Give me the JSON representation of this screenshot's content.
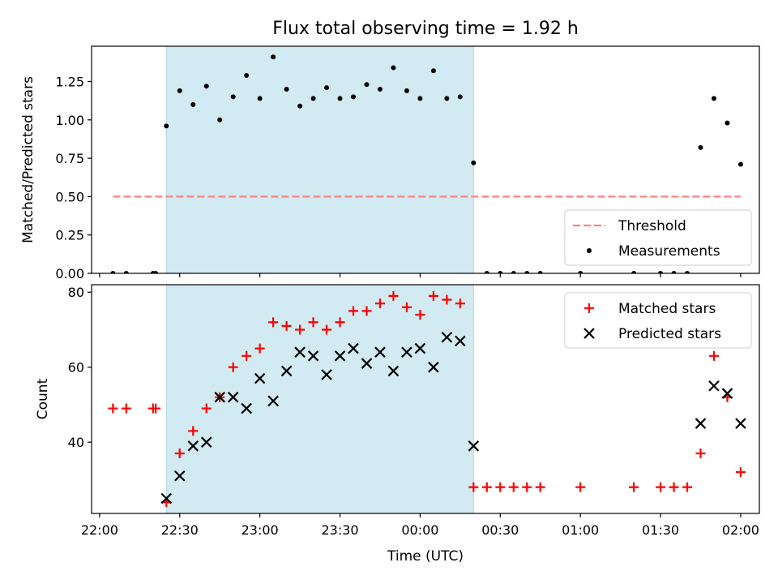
{
  "figure": {
    "title": "Flux total observing time = 1.92 h"
  },
  "chart_data": [
    {
      "type": "scatter",
      "panel": "top",
      "ylabel": "Matched/Predicted stars",
      "xlabel": "",
      "xlim": [
        "21:57",
        "02:07"
      ],
      "ylim": [
        0,
        1.48
      ],
      "yticks": [
        0.0,
        0.25,
        0.5,
        0.75,
        1.0,
        1.25
      ],
      "ytick_labels": [
        "0.00",
        "0.25",
        "0.50",
        "0.75",
        "1.00",
        "1.25"
      ],
      "shaded_span": {
        "start": "22:25",
        "end": "00:20",
        "color": "#add8e6"
      },
      "legend": {
        "placement": "bottom-right",
        "entries": [
          {
            "label": "Threshold",
            "marker": "dashed-line",
            "color": "#ff8080"
          },
          {
            "label": "Measurements",
            "marker": "dot",
            "color": "#000000"
          }
        ]
      },
      "threshold": {
        "name": "Threshold",
        "value": 0.5,
        "x_start": "22:05",
        "x_end": "02:00",
        "color": "#ff8080"
      },
      "series": [
        {
          "name": "Measurements",
          "color": "#000000",
          "points": [
            [
              "22:05",
              0
            ],
            [
              "22:10",
              0
            ],
            [
              "22:20",
              0
            ],
            [
              "22:21",
              0
            ],
            [
              "22:25",
              0.96
            ],
            [
              "22:30",
              1.19
            ],
            [
              "22:35",
              1.1
            ],
            [
              "22:40",
              1.22
            ],
            [
              "22:45",
              1.0
            ],
            [
              "22:50",
              1.15
            ],
            [
              "22:55",
              1.29
            ],
            [
              "23:00",
              1.14
            ],
            [
              "23:05",
              1.41
            ],
            [
              "23:10",
              1.2
            ],
            [
              "23:15",
              1.09
            ],
            [
              "23:20",
              1.14
            ],
            [
              "23:25",
              1.21
            ],
            [
              "23:30",
              1.14
            ],
            [
              "23:35",
              1.15
            ],
            [
              "23:40",
              1.23
            ],
            [
              "23:45",
              1.2
            ],
            [
              "23:50",
              1.34
            ],
            [
              "23:55",
              1.19
            ],
            [
              "00:00",
              1.14
            ],
            [
              "00:05",
              1.32
            ],
            [
              "00:10",
              1.14
            ],
            [
              "00:15",
              1.15
            ],
            [
              "00:20",
              0.72
            ],
            [
              "00:25",
              0
            ],
            [
              "00:30",
              0
            ],
            [
              "00:35",
              0
            ],
            [
              "00:40",
              0
            ],
            [
              "00:45",
              0
            ],
            [
              "01:00",
              0
            ],
            [
              "01:20",
              0
            ],
            [
              "01:30",
              0
            ],
            [
              "01:35",
              0
            ],
            [
              "01:40",
              0
            ],
            [
              "01:45",
              0.82
            ],
            [
              "01:50",
              1.14
            ],
            [
              "01:55",
              0.98
            ],
            [
              "02:00",
              0.71
            ]
          ]
        }
      ]
    },
    {
      "type": "scatter",
      "panel": "bottom",
      "ylabel": "Count",
      "xlabel": "Time (UTC)",
      "xlim": [
        "21:57",
        "02:07"
      ],
      "ylim": [
        21,
        82
      ],
      "yticks": [
        40,
        60,
        80
      ],
      "ytick_labels": [
        "40",
        "60",
        "80"
      ],
      "xticks": [
        "22:00",
        "22:30",
        "23:00",
        "23:30",
        "00:00",
        "00:30",
        "01:00",
        "01:30",
        "02:00"
      ],
      "xtick_labels": [
        "22:00",
        "22:30",
        "23:00",
        "23:30",
        "00:00",
        "00:30",
        "01:00",
        "01:30",
        "02:00"
      ],
      "shaded_span": {
        "start": "22:25",
        "end": "00:20",
        "color": "#add8e6"
      },
      "legend": {
        "placement": "top-right",
        "entries": [
          {
            "label": "Matched stars",
            "marker": "plus",
            "color": "#ff0000"
          },
          {
            "label": "Predicted stars",
            "marker": "x",
            "color": "#000000"
          }
        ]
      },
      "series": [
        {
          "name": "Matched stars",
          "marker": "plus",
          "color": "#ff0000",
          "points": [
            [
              "22:05",
              49
            ],
            [
              "22:10",
              49
            ],
            [
              "22:20",
              49
            ],
            [
              "22:21",
              49
            ],
            [
              "22:25",
              24
            ],
            [
              "22:30",
              37
            ],
            [
              "22:35",
              43
            ],
            [
              "22:40",
              49
            ],
            [
              "22:45",
              52
            ],
            [
              "22:50",
              60
            ],
            [
              "22:55",
              63
            ],
            [
              "23:00",
              65
            ],
            [
              "23:05",
              72
            ],
            [
              "23:10",
              71
            ],
            [
              "23:15",
              70
            ],
            [
              "23:20",
              72
            ],
            [
              "23:25",
              70
            ],
            [
              "23:30",
              72
            ],
            [
              "23:35",
              75
            ],
            [
              "23:40",
              75
            ],
            [
              "23:45",
              77
            ],
            [
              "23:50",
              79
            ],
            [
              "23:55",
              76
            ],
            [
              "00:00",
              74
            ],
            [
              "00:05",
              79
            ],
            [
              "00:10",
              78
            ],
            [
              "00:15",
              77
            ],
            [
              "00:20",
              28
            ],
            [
              "00:25",
              28
            ],
            [
              "00:30",
              28
            ],
            [
              "00:35",
              28
            ],
            [
              "00:40",
              28
            ],
            [
              "00:45",
              28
            ],
            [
              "01:00",
              28
            ],
            [
              "01:20",
              28
            ],
            [
              "01:30",
              28
            ],
            [
              "01:35",
              28
            ],
            [
              "01:40",
              28
            ],
            [
              "01:45",
              37
            ],
            [
              "01:50",
              63
            ],
            [
              "01:55",
              52
            ],
            [
              "02:00",
              32
            ]
          ]
        },
        {
          "name": "Predicted stars",
          "marker": "x",
          "color": "#000000",
          "points": [
            [
              "22:25",
              25
            ],
            [
              "22:30",
              31
            ],
            [
              "22:35",
              39
            ],
            [
              "22:40",
              40
            ],
            [
              "22:45",
              52
            ],
            [
              "22:50",
              52
            ],
            [
              "22:55",
              49
            ],
            [
              "23:00",
              57
            ],
            [
              "23:05",
              51
            ],
            [
              "23:10",
              59
            ],
            [
              "23:15",
              64
            ],
            [
              "23:20",
              63
            ],
            [
              "23:25",
              58
            ],
            [
              "23:30",
              63
            ],
            [
              "23:35",
              65
            ],
            [
              "23:40",
              61
            ],
            [
              "23:45",
              64
            ],
            [
              "23:50",
              59
            ],
            [
              "23:55",
              64
            ],
            [
              "00:00",
              65
            ],
            [
              "00:05",
              60
            ],
            [
              "00:10",
              68
            ],
            [
              "00:15",
              67
            ],
            [
              "00:20",
              39
            ],
            [
              "01:45",
              45
            ],
            [
              "01:50",
              55
            ],
            [
              "01:55",
              53
            ],
            [
              "02:00",
              45
            ]
          ]
        }
      ]
    }
  ]
}
